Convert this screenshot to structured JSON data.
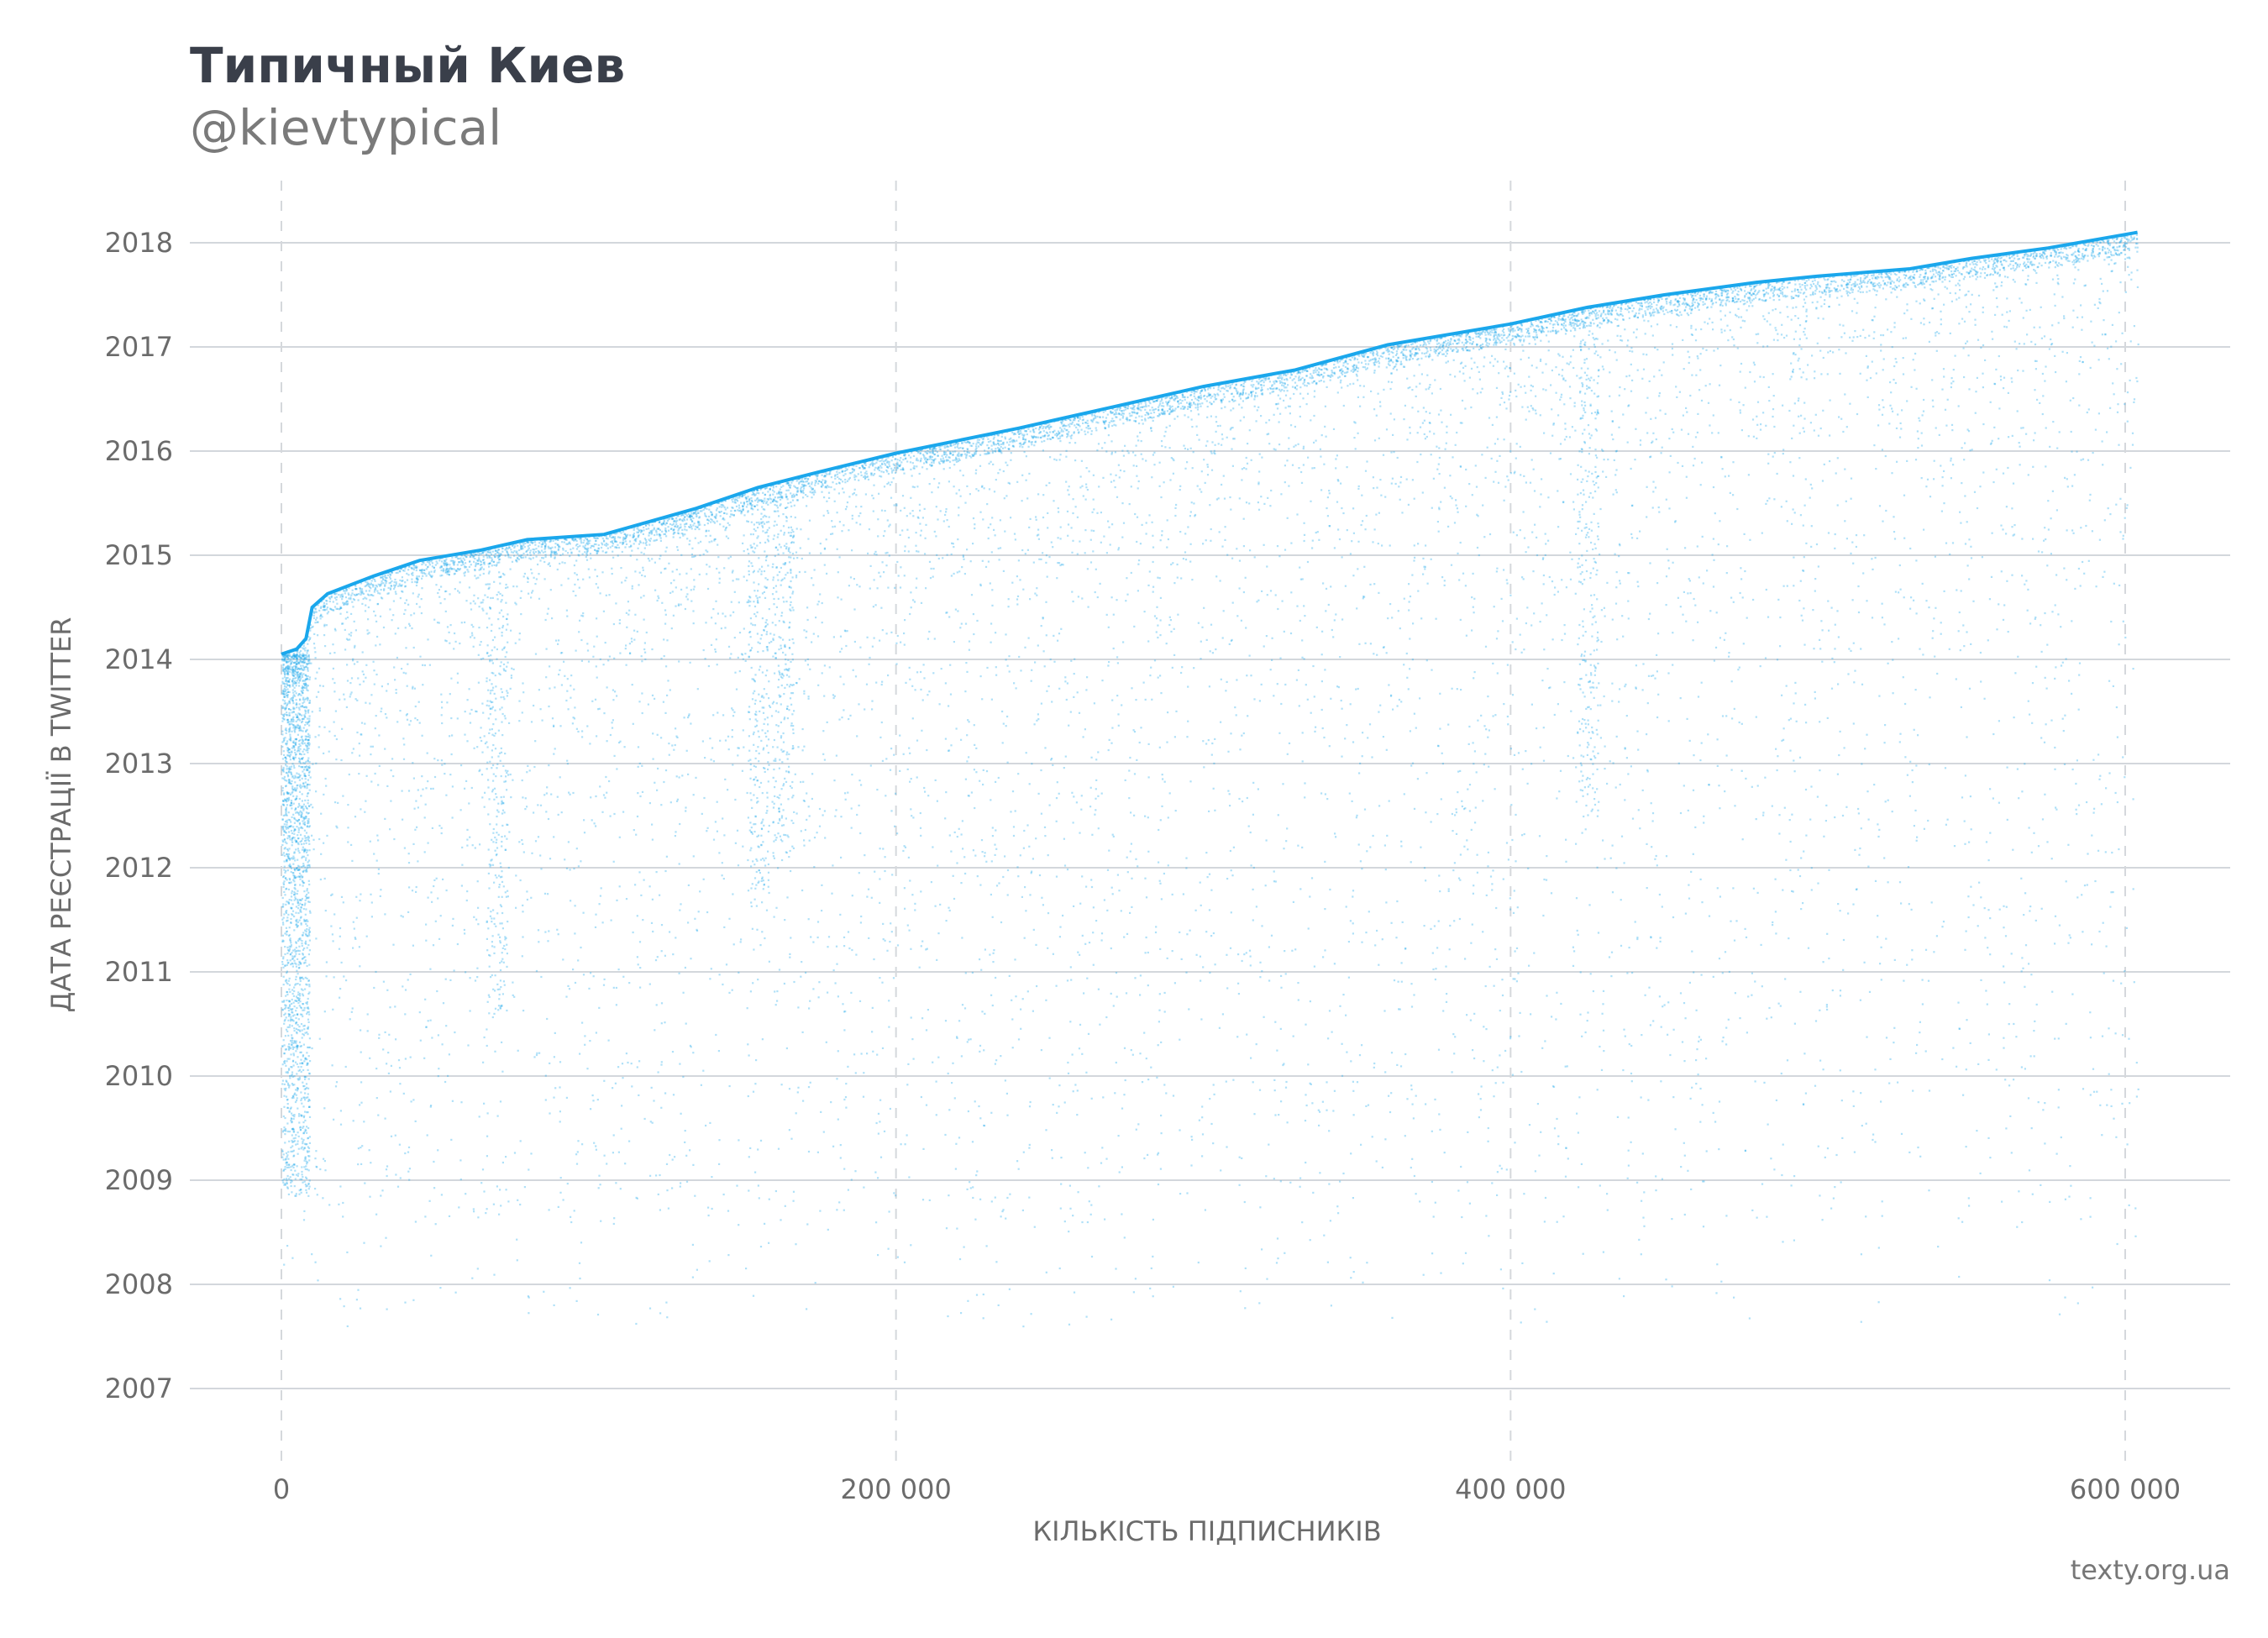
{
  "chart_data": {
    "type": "scatter",
    "title": "Типичный Киев",
    "subtitle": "@kievtypical",
    "xlabel": "КІЛЬКІСТЬ ПІДПИСНИКІВ",
    "ylabel": "ДАТА РЕЄСТРАЦІЇ В TWITTER",
    "xlim": [
      -30000,
      635000
    ],
    "ylim": [
      2006.4,
      2018.6
    ],
    "x_ticks": [
      0,
      200000,
      400000,
      600000
    ],
    "x_tick_labels": [
      "0",
      "200 000",
      "400 000",
      "600 000"
    ],
    "y_ticks": [
      2007,
      2008,
      2009,
      2010,
      2011,
      2012,
      2013,
      2014,
      2015,
      2016,
      2017,
      2018
    ],
    "y_tick_labels": [
      "2007",
      "2008",
      "2009",
      "2010",
      "2011",
      "2012",
      "2013",
      "2014",
      "2015",
      "2016",
      "2017",
      "2018"
    ],
    "grid": {
      "horizontal": "solid",
      "vertical": "dashed"
    },
    "point_color": "#1aa7ec",
    "upper_envelope": {
      "x": [
        0,
        5000,
        8000,
        10000,
        15000,
        30000,
        45000,
        65000,
        80000,
        105000,
        135000,
        155000,
        175000,
        200000,
        240000,
        270000,
        300000,
        330000,
        360000,
        400000,
        425000,
        450000,
        480000,
        500000,
        530000,
        550000,
        575000,
        604000
      ],
      "y": [
        2014.05,
        2014.1,
        2014.2,
        2014.5,
        2014.63,
        2014.8,
        2014.95,
        2015.05,
        2015.15,
        2015.2,
        2015.45,
        2015.65,
        2015.8,
        2015.98,
        2016.22,
        2016.42,
        2016.62,
        2016.78,
        2017.02,
        2017.22,
        2017.38,
        2017.5,
        2017.62,
        2017.68,
        2017.75,
        2017.85,
        2017.95,
        2018.1
      ]
    }
  },
  "source": "texty.org.ua"
}
